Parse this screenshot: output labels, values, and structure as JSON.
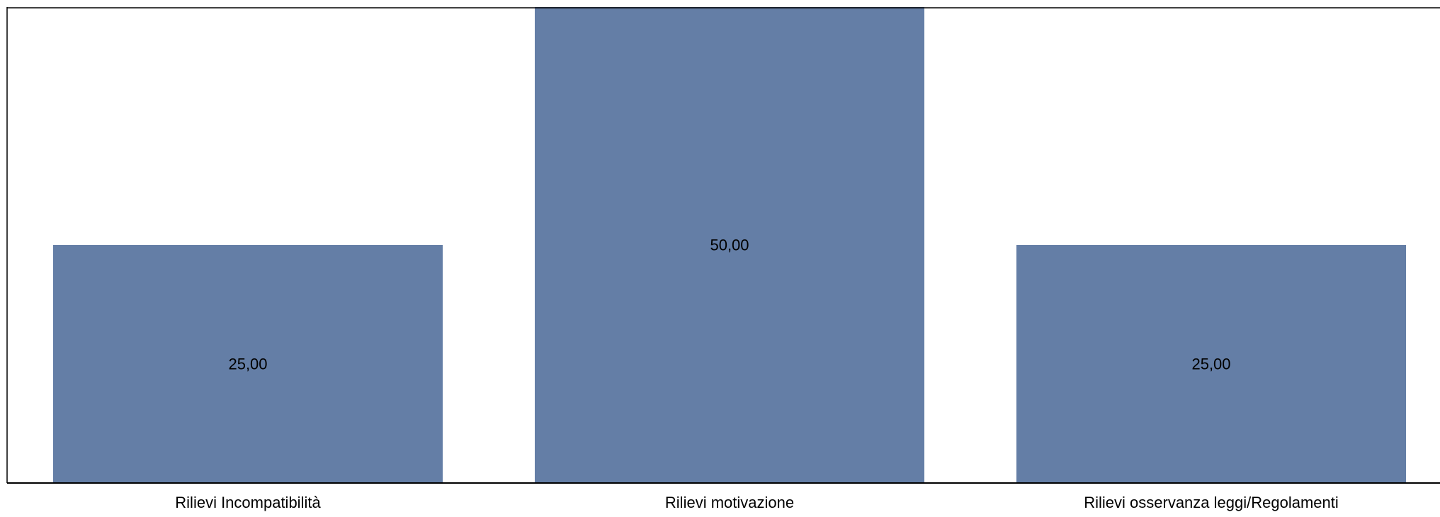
{
  "chart_data": {
    "type": "bar",
    "categories": [
      "Rilievi Incompatibilità",
      "Rilievi motivazione",
      "Rilievi osservanza leggi/Regolamenti"
    ],
    "values": [
      25,
      50,
      25
    ],
    "value_labels": [
      "25,00",
      "50,00",
      "25,00"
    ],
    "title": "",
    "xlabel": "",
    "ylabel": "",
    "ylim": [
      0,
      50
    ],
    "grid": false,
    "legend": "none",
    "colors": {
      "bar": "#647ea6",
      "frame": "#000000",
      "background": "#ffffff"
    }
  }
}
